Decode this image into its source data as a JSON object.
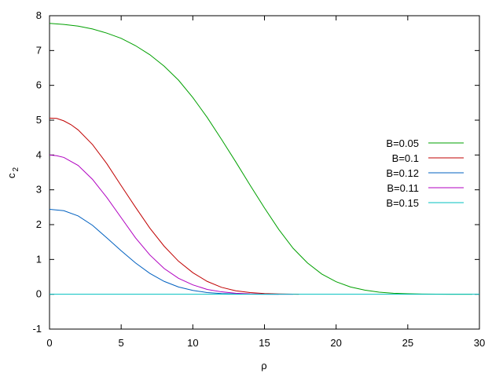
{
  "chart_data": {
    "type": "line",
    "xlabel": "ρ",
    "ylabel": "c",
    "ylabel_sub": "2",
    "xlim": [
      0,
      30
    ],
    "ylim": [
      -1,
      8
    ],
    "x_ticks": [
      0,
      5,
      10,
      15,
      20,
      25,
      30
    ],
    "y_ticks": [
      -1,
      0,
      1,
      2,
      3,
      4,
      5,
      6,
      7,
      8
    ],
    "grid": false,
    "legend_position": "right",
    "series": [
      {
        "name": "B=0.05",
        "color": "#00a000",
        "x": [
          0,
          1,
          2,
          3,
          4,
          5,
          6,
          7,
          8,
          9,
          10,
          11,
          12,
          13,
          14,
          15,
          16,
          17,
          18,
          19,
          20,
          21,
          22,
          23,
          24,
          25,
          26,
          27,
          28,
          29,
          29.5
        ],
        "y": [
          7.78,
          7.75,
          7.7,
          7.62,
          7.5,
          7.35,
          7.14,
          6.88,
          6.55,
          6.15,
          5.65,
          5.08,
          4.45,
          3.8,
          3.13,
          2.48,
          1.86,
          1.32,
          0.9,
          0.58,
          0.36,
          0.21,
          0.12,
          0.06,
          0.03,
          0.015,
          0.007,
          0.003,
          0.001,
          0.0,
          0.0
        ]
      },
      {
        "name": "B=0.1",
        "color": "#c00000",
        "x": [
          0,
          0.5,
          1,
          1.5,
          2,
          3,
          4,
          5,
          6,
          7,
          8,
          9,
          10,
          11,
          12,
          13,
          14,
          15,
          16,
          17,
          17.4
        ],
        "y": [
          5.06,
          5.05,
          4.98,
          4.87,
          4.72,
          4.3,
          3.75,
          3.12,
          2.5,
          1.9,
          1.38,
          0.95,
          0.62,
          0.37,
          0.2,
          0.1,
          0.05,
          0.02,
          0.008,
          0.003,
          0.0
        ]
      },
      {
        "name": "B=0.12",
        "color": "#0060c0",
        "x": [
          0,
          1,
          2,
          3,
          4,
          5,
          6,
          7,
          8,
          9,
          10,
          11,
          12,
          13,
          14,
          15,
          16
        ],
        "y": [
          2.44,
          2.4,
          2.25,
          1.98,
          1.62,
          1.25,
          0.9,
          0.6,
          0.37,
          0.21,
          0.11,
          0.05,
          0.02,
          0.008,
          0.003,
          0.001,
          0.0
        ]
      },
      {
        "name": "B=0.11",
        "color": "#b000c0",
        "x": [
          0,
          0.5,
          1,
          2,
          3,
          4,
          5,
          6,
          7,
          8,
          9,
          10,
          11,
          12,
          13,
          14,
          15,
          16,
          17
        ],
        "y": [
          4.0,
          3.98,
          3.93,
          3.7,
          3.3,
          2.78,
          2.2,
          1.62,
          1.13,
          0.74,
          0.46,
          0.27,
          0.14,
          0.07,
          0.03,
          0.012,
          0.005,
          0.002,
          0.0
        ]
      },
      {
        "name": "B=0.15",
        "color": "#00c0c0",
        "x": [
          0,
          30
        ],
        "y": [
          0,
          0
        ]
      }
    ]
  }
}
